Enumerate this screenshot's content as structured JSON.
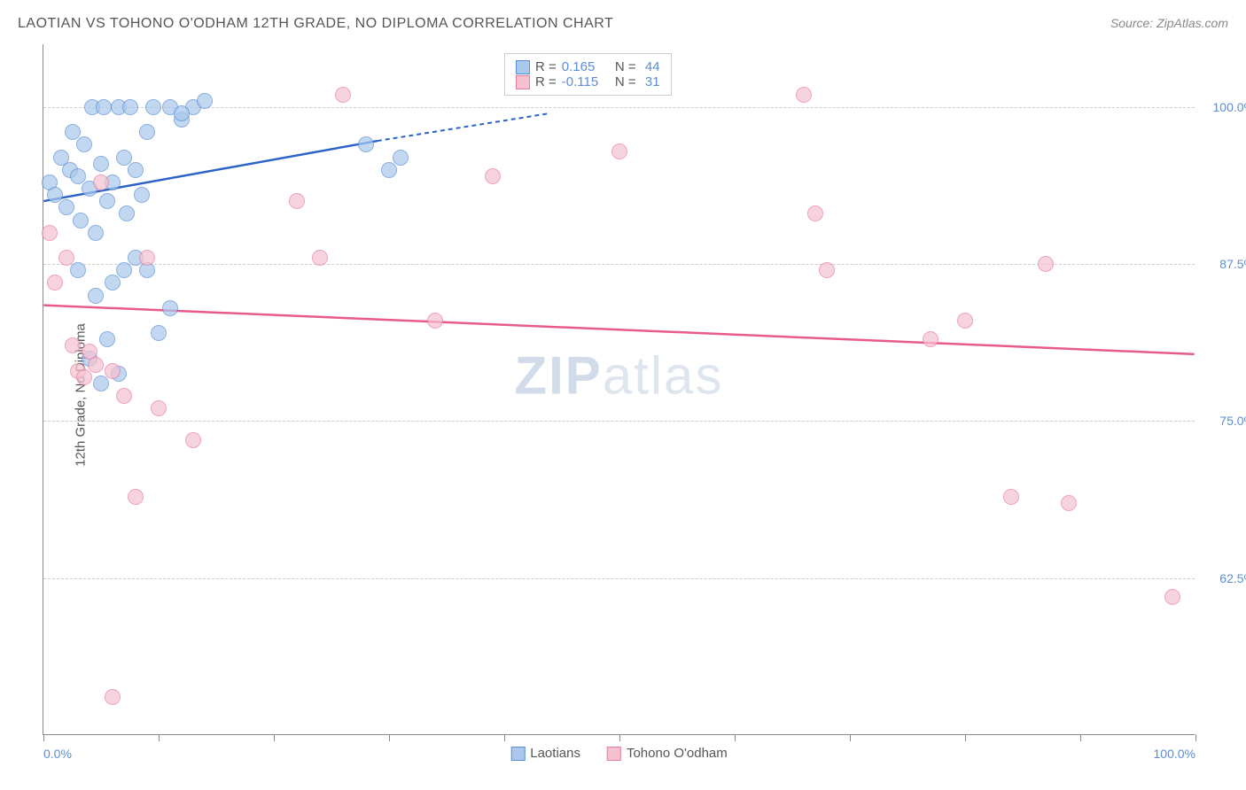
{
  "title": "LAOTIAN VS TOHONO O'ODHAM 12TH GRADE, NO DIPLOMA CORRELATION CHART",
  "source": "Source: ZipAtlas.com",
  "watermark_left": "ZIP",
  "watermark_right": "atlas",
  "y_axis_title": "12th Grade, No Diploma",
  "chart": {
    "type": "scatter",
    "xlim": [
      0,
      100
    ],
    "ylim": [
      50,
      105
    ],
    "y_ticks": [
      62.5,
      75.0,
      87.5,
      100.0
    ],
    "y_tick_labels": [
      "62.5%",
      "75.0%",
      "87.5%",
      "100.0%"
    ],
    "x_tick_labels": [
      "0.0%",
      "100.0%"
    ],
    "x_tick_positions": [
      0,
      100
    ],
    "x_minor_ticks": [
      0,
      10,
      20,
      30,
      40,
      50,
      60,
      70,
      80,
      90,
      100
    ],
    "background_color": "#ffffff",
    "grid_color": "#cccccc",
    "series": [
      {
        "name": "Laotians",
        "label": "Laotians",
        "fill": "#a9c8ec",
        "stroke": "#5b8dd6",
        "line_color": "#2a62c8",
        "R": "0.165",
        "N": "44",
        "trend": {
          "x1": 0,
          "y1": 92.5,
          "x2": 29,
          "y2": 97.3,
          "dash_x2": 44,
          "dash_y2": 99.5
        },
        "points": [
          [
            0.5,
            94
          ],
          [
            1,
            93
          ],
          [
            1.5,
            96
          ],
          [
            2,
            92
          ],
          [
            2.3,
            95
          ],
          [
            2.5,
            98
          ],
          [
            3,
            94.5
          ],
          [
            3.2,
            91
          ],
          [
            3.5,
            97
          ],
          [
            4,
            93.5
          ],
          [
            4.2,
            100
          ],
          [
            4.5,
            90
          ],
          [
            5,
            95.5
          ],
          [
            5.2,
            100
          ],
          [
            5.5,
            92.5
          ],
          [
            6,
            94
          ],
          [
            6.5,
            100
          ],
          [
            7,
            96
          ],
          [
            7.2,
            91.5
          ],
          [
            7.5,
            100
          ],
          [
            8,
            95
          ],
          [
            8.5,
            93
          ],
          [
            9,
            98
          ],
          [
            9.5,
            100
          ],
          [
            11,
            100
          ],
          [
            12,
            99
          ],
          [
            13,
            100
          ],
          [
            14,
            100.5
          ],
          [
            3,
            87
          ],
          [
            5,
            78
          ],
          [
            6,
            86
          ],
          [
            7,
            87
          ],
          [
            8,
            88
          ],
          [
            9,
            87
          ],
          [
            10,
            82
          ],
          [
            11,
            84
          ],
          [
            12,
            99.5
          ],
          [
            4,
            80
          ],
          [
            4.5,
            85
          ],
          [
            5.5,
            81.5
          ],
          [
            28,
            97
          ],
          [
            30,
            95
          ],
          [
            31,
            96
          ],
          [
            6.5,
            78.8
          ]
        ]
      },
      {
        "name": "Tohono O'odham",
        "label": "Tohono O'odham",
        "fill": "#f5c1cf",
        "stroke": "#e87ca0",
        "line_color": "#e85a8c",
        "R": "-0.115",
        "N": "31",
        "trend": {
          "x1": 0,
          "y1": 84.2,
          "x2": 100,
          "y2": 80.3
        },
        "points": [
          [
            0.5,
            90
          ],
          [
            1,
            86
          ],
          [
            2,
            88
          ],
          [
            2.5,
            81
          ],
          [
            3,
            79
          ],
          [
            3.5,
            78.5
          ],
          [
            4,
            80.5
          ],
          [
            4.5,
            79.5
          ],
          [
            5,
            94
          ],
          [
            6,
            79
          ],
          [
            7,
            77
          ],
          [
            9,
            88
          ],
          [
            10,
            76
          ],
          [
            13,
            73.5
          ],
          [
            8,
            69
          ],
          [
            6,
            53
          ],
          [
            22,
            92.5
          ],
          [
            24,
            88
          ],
          [
            26,
            101
          ],
          [
            34,
            83
          ],
          [
            39,
            94.5
          ],
          [
            50,
            96.5
          ],
          [
            66,
            101
          ],
          [
            67,
            91.5
          ],
          [
            68,
            87
          ],
          [
            77,
            81.5
          ],
          [
            80,
            83
          ],
          [
            87,
            87.5
          ],
          [
            84,
            69
          ],
          [
            89,
            68.5
          ],
          [
            98,
            61
          ]
        ]
      }
    ]
  },
  "stats_legend": {
    "rows": [
      {
        "swatch_fill": "#a9c8ec",
        "swatch_stroke": "#5b8dd6",
        "R": "0.165",
        "N": "44"
      },
      {
        "swatch_fill": "#f5c1cf",
        "swatch_stroke": "#e87ca0",
        "R": "-0.115",
        "N": "31"
      }
    ]
  }
}
